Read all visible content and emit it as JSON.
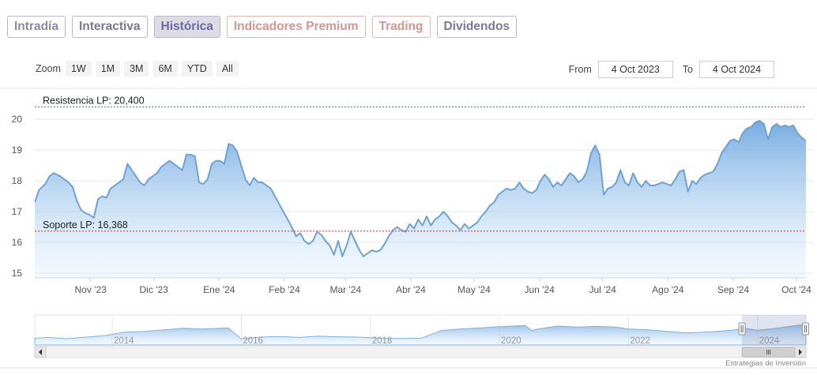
{
  "tabs": [
    {
      "label": "Intradía",
      "style": "tab-a"
    },
    {
      "label": "Interactiva",
      "style": "tab-b"
    },
    {
      "label": "Histórica",
      "style": "active"
    },
    {
      "label": "Indicadores Premium",
      "style": "premium"
    },
    {
      "label": "Trading",
      "style": "premium"
    },
    {
      "label": "Dividendos",
      "style": "tab-b"
    }
  ],
  "range_selector": {
    "zoom_label": "Zoom",
    "buttons": [
      "1W",
      "1M",
      "3M",
      "6M",
      "YTD",
      "All"
    ],
    "from_label": "From",
    "from_value": "4 Oct 2023",
    "to_label": "To",
    "to_value": "4 Oct 2024"
  },
  "chart_data": {
    "type": "area",
    "y_ticks": [
      15,
      16,
      17,
      18,
      19,
      20
    ],
    "ylim": [
      14.85,
      21.0
    ],
    "x_labels": [
      {
        "label": "Nov '23",
        "t": 26.5
      },
      {
        "label": "Dic '23",
        "t": 56.5
      },
      {
        "label": "Ene '24",
        "t": 87.5
      },
      {
        "label": "Feb '24",
        "t": 118.5
      },
      {
        "label": "Mar '24",
        "t": 147.5
      },
      {
        "label": "Abr '24",
        "t": 178.5
      },
      {
        "label": "May '24",
        "t": 208.5
      },
      {
        "label": "Jun '24",
        "t": 239.5
      },
      {
        "label": "Jul '24",
        "t": 269.5
      },
      {
        "label": "Ago '24",
        "t": 300.5
      },
      {
        "label": "Sep '24",
        "t": 331.5
      },
      {
        "label": "Oct '24",
        "t": 361.5
      }
    ],
    "xlim": [
      0,
      366
    ],
    "series": [
      {
        "values": [
          [
            0,
            17.3
          ],
          [
            2,
            17.7
          ],
          [
            5,
            17.9
          ],
          [
            7,
            18.15
          ],
          [
            9,
            18.25
          ],
          [
            12,
            18.15
          ],
          [
            14,
            18.05
          ],
          [
            16,
            17.95
          ],
          [
            18,
            17.8
          ],
          [
            20,
            17.35
          ],
          [
            22,
            17.05
          ],
          [
            24,
            16.95
          ],
          [
            26,
            16.9
          ],
          [
            28,
            16.8
          ],
          [
            30,
            17.4
          ],
          [
            32,
            17.5
          ],
          [
            34,
            17.45
          ],
          [
            36,
            17.75
          ],
          [
            38,
            17.85
          ],
          [
            40,
            17.95
          ],
          [
            42,
            18.05
          ],
          [
            44,
            18.55
          ],
          [
            46,
            18.35
          ],
          [
            48,
            18.15
          ],
          [
            50,
            17.95
          ],
          [
            52,
            17.85
          ],
          [
            54,
            18.05
          ],
          [
            56,
            18.15
          ],
          [
            58,
            18.25
          ],
          [
            60,
            18.45
          ],
          [
            62,
            18.55
          ],
          [
            64,
            18.65
          ],
          [
            66,
            18.55
          ],
          [
            68,
            18.45
          ],
          [
            70,
            18.35
          ],
          [
            72,
            18.85
          ],
          [
            74,
            18.85
          ],
          [
            76,
            18.8
          ],
          [
            78,
            17.95
          ],
          [
            80,
            17.9
          ],
          [
            82,
            18.05
          ],
          [
            84,
            18.55
          ],
          [
            86,
            18.65
          ],
          [
            88,
            18.65
          ],
          [
            90,
            18.55
          ],
          [
            92,
            19.2
          ],
          [
            94,
            19.15
          ],
          [
            96,
            18.95
          ],
          [
            98,
            18.5
          ],
          [
            100,
            18.05
          ],
          [
            102,
            17.85
          ],
          [
            104,
            18.1
          ],
          [
            106,
            17.95
          ],
          [
            108,
            17.95
          ],
          [
            110,
            17.85
          ],
          [
            112,
            17.75
          ],
          [
            114,
            17.5
          ],
          [
            116,
            17.25
          ],
          [
            118,
            17.0
          ],
          [
            120,
            16.75
          ],
          [
            122,
            16.5
          ],
          [
            124,
            16.2
          ],
          [
            126,
            16.3
          ],
          [
            128,
            16.05
          ],
          [
            130,
            15.95
          ],
          [
            132,
            16.05
          ],
          [
            134,
            16.35
          ],
          [
            136,
            16.25
          ],
          [
            138,
            16.05
          ],
          [
            140,
            15.9
          ],
          [
            142,
            15.6
          ],
          [
            144,
            16.05
          ],
          [
            146,
            15.55
          ],
          [
            148,
            15.9
          ],
          [
            150,
            16.35
          ],
          [
            152,
            16.05
          ],
          [
            154,
            15.75
          ],
          [
            156,
            15.55
          ],
          [
            158,
            15.65
          ],
          [
            160,
            15.75
          ],
          [
            162,
            15.7
          ],
          [
            164,
            15.75
          ],
          [
            166,
            15.95
          ],
          [
            168,
            16.2
          ],
          [
            170,
            16.4
          ],
          [
            172,
            16.5
          ],
          [
            174,
            16.4
          ],
          [
            176,
            16.35
          ],
          [
            178,
            16.6
          ],
          [
            180,
            16.45
          ],
          [
            182,
            16.75
          ],
          [
            184,
            16.55
          ],
          [
            186,
            16.85
          ],
          [
            188,
            16.55
          ],
          [
            190,
            16.75
          ],
          [
            192,
            16.85
          ],
          [
            194,
            17.0
          ],
          [
            196,
            16.85
          ],
          [
            198,
            16.65
          ],
          [
            200,
            16.55
          ],
          [
            202,
            16.4
          ],
          [
            204,
            16.6
          ],
          [
            206,
            16.45
          ],
          [
            208,
            16.55
          ],
          [
            210,
            16.65
          ],
          [
            212,
            16.85
          ],
          [
            214,
            17.0
          ],
          [
            216,
            17.2
          ],
          [
            218,
            17.3
          ],
          [
            220,
            17.55
          ],
          [
            222,
            17.65
          ],
          [
            224,
            17.75
          ],
          [
            226,
            17.7
          ],
          [
            228,
            17.75
          ],
          [
            230,
            17.95
          ],
          [
            232,
            17.75
          ],
          [
            234,
            17.65
          ],
          [
            236,
            17.6
          ],
          [
            238,
            17.7
          ],
          [
            240,
            18.0
          ],
          [
            242,
            18.2
          ],
          [
            244,
            18.05
          ],
          [
            246,
            17.8
          ],
          [
            248,
            17.95
          ],
          [
            250,
            17.85
          ],
          [
            252,
            18.05
          ],
          [
            254,
            18.25
          ],
          [
            256,
            18.15
          ],
          [
            258,
            17.95
          ],
          [
            260,
            18.05
          ],
          [
            262,
            18.3
          ],
          [
            264,
            18.9
          ],
          [
            266,
            19.15
          ],
          [
            268,
            18.85
          ],
          [
            270,
            17.55
          ],
          [
            272,
            17.75
          ],
          [
            274,
            17.8
          ],
          [
            276,
            17.95
          ],
          [
            278,
            18.35
          ],
          [
            280,
            17.95
          ],
          [
            282,
            17.85
          ],
          [
            284,
            18.25
          ],
          [
            286,
            17.95
          ],
          [
            288,
            17.8
          ],
          [
            290,
            18.0
          ],
          [
            292,
            17.85
          ],
          [
            294,
            17.85
          ],
          [
            296,
            17.9
          ],
          [
            298,
            17.95
          ],
          [
            300,
            17.9
          ],
          [
            302,
            17.85
          ],
          [
            304,
            18.05
          ],
          [
            306,
            18.3
          ],
          [
            308,
            18.35
          ],
          [
            310,
            17.65
          ],
          [
            312,
            18.0
          ],
          [
            314,
            17.9
          ],
          [
            316,
            18.1
          ],
          [
            318,
            18.2
          ],
          [
            320,
            18.25
          ],
          [
            322,
            18.3
          ],
          [
            324,
            18.55
          ],
          [
            326,
            18.9
          ],
          [
            328,
            19.1
          ],
          [
            330,
            19.3
          ],
          [
            332,
            19.35
          ],
          [
            334,
            19.25
          ],
          [
            336,
            19.55
          ],
          [
            338,
            19.7
          ],
          [
            340,
            19.75
          ],
          [
            342,
            19.9
          ],
          [
            344,
            19.95
          ],
          [
            346,
            19.85
          ],
          [
            348,
            19.35
          ],
          [
            350,
            19.75
          ],
          [
            352,
            19.85
          ],
          [
            354,
            19.75
          ],
          [
            356,
            19.8
          ],
          [
            358,
            19.75
          ],
          [
            360,
            19.8
          ],
          [
            362,
            19.55
          ],
          [
            364,
            19.4
          ],
          [
            366,
            19.3
          ]
        ]
      }
    ],
    "annotations": [
      {
        "label": "Resistencia LP: 20,400",
        "y": 20.4,
        "color": "#2d8a3e"
      },
      {
        "label": "Soporte LP: 16,368",
        "y": 16.368,
        "color": "#b03a3a"
      }
    ],
    "navigator": {
      "year_labels": [
        {
          "label": "2014",
          "t": 2014
        },
        {
          "label": "2016",
          "t": 2016
        },
        {
          "label": "2018",
          "t": 2018
        },
        {
          "label": "2020",
          "t": 2020
        },
        {
          "label": "2022",
          "t": 2022
        },
        {
          "label": "2024",
          "t": 2024
        }
      ],
      "xlim": [
        2012.8,
        2024.75
      ],
      "ylim": [
        5,
        24
      ],
      "values": [
        [
          2012.8,
          9.2
        ],
        [
          2013.0,
          9.8
        ],
        [
          2013.3,
          9.0
        ],
        [
          2013.6,
          10.0
        ],
        [
          2013.9,
          11.0
        ],
        [
          2014.2,
          13.2
        ],
        [
          2014.5,
          13.6
        ],
        [
          2014.8,
          14.6
        ],
        [
          2015.1,
          15.6
        ],
        [
          2015.4,
          15.2
        ],
        [
          2015.8,
          15.8
        ],
        [
          2016.0,
          8.8
        ],
        [
          2016.3,
          10.0
        ],
        [
          2016.6,
          10.4
        ],
        [
          2016.9,
          9.8
        ],
        [
          2017.2,
          10.6
        ],
        [
          2017.5,
          10.2
        ],
        [
          2017.8,
          10.0
        ],
        [
          2018.2,
          9.2
        ],
        [
          2018.5,
          9.2
        ],
        [
          2018.8,
          9.4
        ],
        [
          2019.0,
          12.6
        ],
        [
          2019.1,
          14.2
        ],
        [
          2019.4,
          15.2
        ],
        [
          2019.7,
          15.8
        ],
        [
          2020.0,
          16.6
        ],
        [
          2020.4,
          17.4
        ],
        [
          2020.5,
          14.2
        ],
        [
          2020.6,
          15.2
        ],
        [
          2020.9,
          17.0
        ],
        [
          2021.2,
          16.4
        ],
        [
          2021.5,
          16.8
        ],
        [
          2021.8,
          16.4
        ],
        [
          2022.0,
          15.2
        ],
        [
          2022.3,
          14.6
        ],
        [
          2022.6,
          13.6
        ],
        [
          2022.9,
          12.6
        ],
        [
          2023.2,
          13.2
        ],
        [
          2023.6,
          14.4
        ],
        [
          2023.8,
          15.6
        ],
        [
          2024.0,
          14.4
        ],
        [
          2024.3,
          15.6
        ],
        [
          2024.6,
          17.4
        ],
        [
          2024.75,
          18.0
        ]
      ],
      "window": [
        2023.76,
        2024.75
      ]
    }
  },
  "credit": "Estrategias de Inversión"
}
